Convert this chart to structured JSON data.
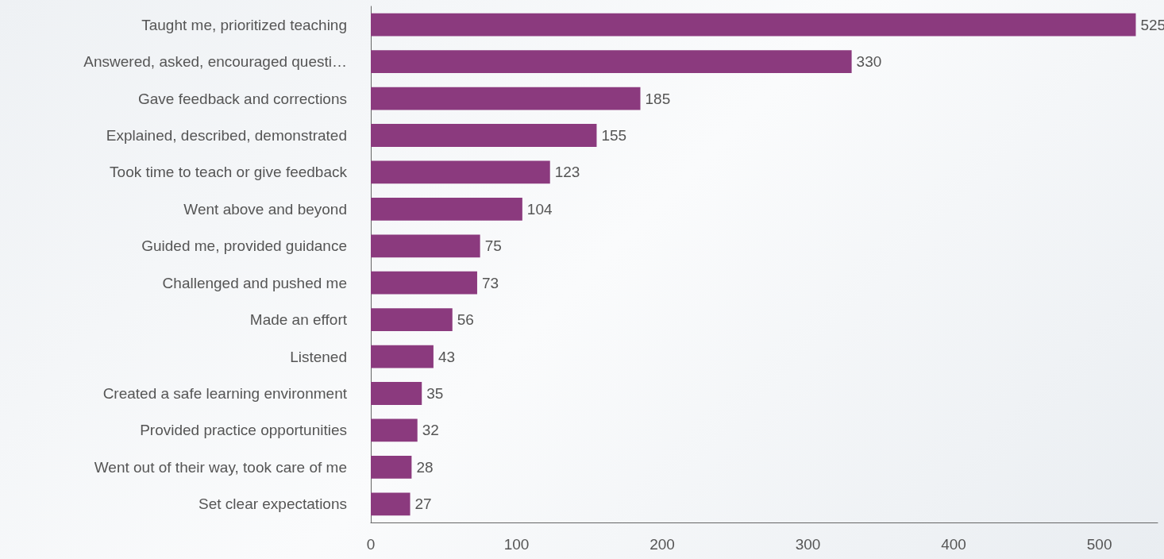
{
  "chart_data": {
    "type": "bar",
    "orientation": "horizontal",
    "categories": [
      "Taught me, prioritized teaching",
      "Answered, asked, encouraged questi…",
      "Gave feedback and corrections",
      "Explained, described, demonstrated",
      "Took time to teach or give feedback",
      "Went above and beyond",
      "Guided me, provided guidance",
      "Challenged and pushed me",
      "Made an effort",
      "Listened",
      "Created a safe learning environment",
      "Provided practice opportunities",
      "Went out of their way, took care of me",
      "Set clear expectations"
    ],
    "values": [
      525,
      330,
      185,
      155,
      123,
      104,
      75,
      73,
      56,
      43,
      35,
      32,
      28,
      27
    ],
    "color": "#8b3a7e",
    "xlim": [
      0,
      540
    ],
    "xticks": [
      0,
      100,
      200,
      300,
      400,
      500
    ],
    "data_labels": true
  }
}
